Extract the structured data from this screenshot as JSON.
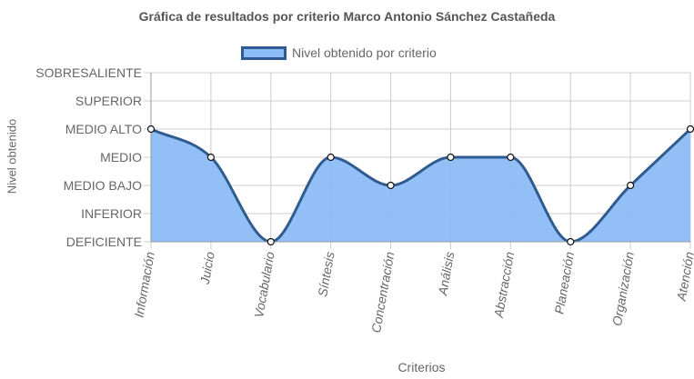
{
  "chart_data": {
    "type": "area",
    "title": "Gráfica de resultados por criterio Marco Antonio Sánchez Castañeda",
    "xlabel": "Criterios",
    "ylabel": "Nivel obtenido",
    "y_levels": [
      "DEFICIENTE",
      "INFERIOR",
      "MEDIO BAJO",
      "MEDIO",
      "MEDIO ALTO",
      "SUPERIOR",
      "SOBRESALIENTE"
    ],
    "ylim": [
      0,
      6
    ],
    "categories": [
      "Información",
      "Juicio",
      "Vocabulario",
      "Síntesis",
      "Concentración",
      "Análisis",
      "Abstracción",
      "Planeación",
      "Organización",
      "Atención"
    ],
    "series": [
      {
        "name": "Nivel obtenido por criterio",
        "values": [
          4,
          3,
          0,
          3,
          2,
          3,
          3,
          0,
          2,
          4
        ]
      }
    ],
    "legend_position": "top",
    "grid": true,
    "colors": {
      "fill": "#8cbcf6",
      "line": "#2f5b8f",
      "grid": "#cccccc"
    }
  }
}
